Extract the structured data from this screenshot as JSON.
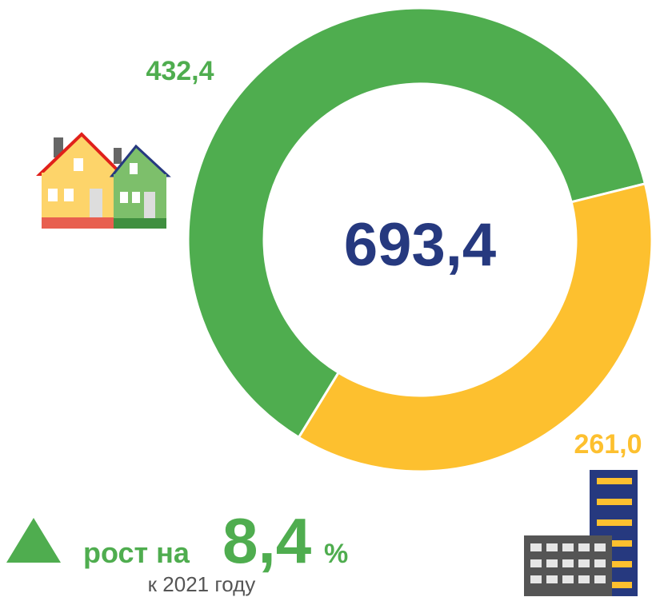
{
  "chart_data": {
    "type": "donut",
    "categories": [
      null,
      null
    ],
    "values": [
      432.4,
      261.0
    ],
    "value_labels": [
      "432,4",
      "261,0"
    ],
    "colors": [
      "#4fad4f",
      "#fdc02f"
    ],
    "center_label": "693,4",
    "annotations": {
      "growth_prefix": "рост на",
      "growth_value": "8,4",
      "growth_unit": "%",
      "growth_note": "к 2021 году"
    }
  }
}
